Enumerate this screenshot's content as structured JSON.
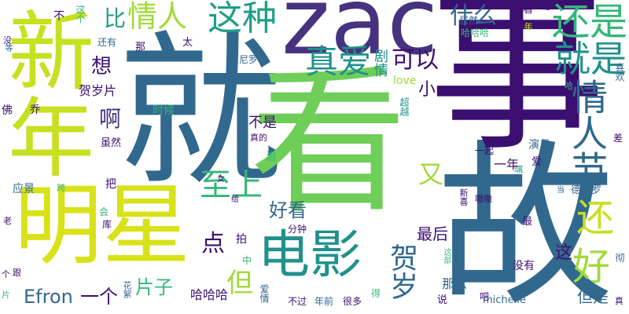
{
  "colors": {
    "background": "#ffffff",
    "c1": "#3b0f70",
    "c2": "#31688e",
    "c3": "#21918c",
    "c4": "#35b779",
    "c5": "#6ece58",
    "c6": "#a0da39",
    "c7": "#d8e219",
    "c8": "#fde725",
    "c9": "#46327e",
    "c10": "#1f9e89"
  },
  "words": [
    "就",
    "看",
    "故",
    "事",
    "zac",
    "新年",
    "明星",
    "电影",
    "还是",
    "就是",
    "情人节",
    "这种",
    "真爱",
    "情人",
    "什么",
    "可以",
    "至上",
    "好看",
    "点",
    "但",
    "Efron",
    "一个",
    "片子",
    "哈哈哈",
    "贺岁",
    "还",
    "好",
    "比",
    "想",
    "啊",
    "又",
    "小",
    "不是",
    "最后",
    "剧情",
    "love",
    "贺岁片",
    "这",
    "那么",
    "但是",
    "没有",
    "michelle",
    "一年",
    "演员",
    "一起",
    "德尼罗",
    "超越",
    "居然",
    "配",
    "看看",
    "年",
    "哈哈哈",
    "不",
    "这个",
    "还有",
    "那",
    "太",
    "尼罗",
    "乔",
    "时候",
    "虽然",
    "泪",
    "真的",
    "会",
    "库",
    "把",
    "应景",
    "跨",
    "女",
    "给",
    "拍",
    "中",
    "分钟",
    "爱情",
    "不过",
    "年前",
    "很多",
    "得",
    "说",
    "吧",
    "新喜",
    "嗷嗷",
    "最",
    "当",
    "差",
    "瑞",
    "爱",
    "佛",
    "没",
    "等",
    "老",
    "个",
    "跟",
    "片",
    "花絮",
    "彻",
    "真",
    "这部",
    "喜欢",
    "哈"
  ]
}
